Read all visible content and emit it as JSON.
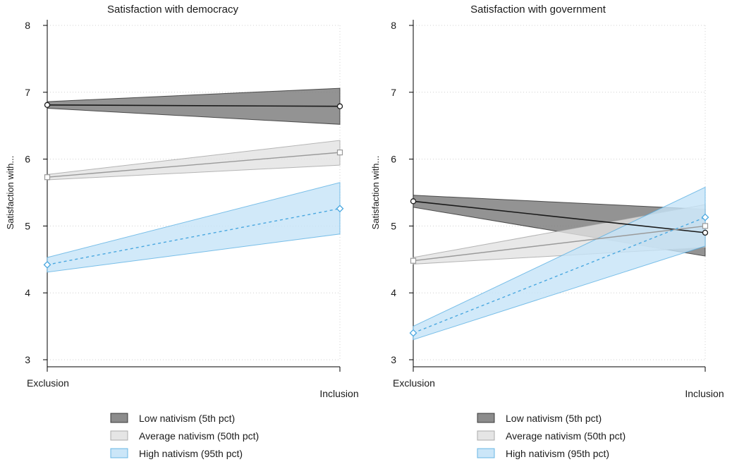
{
  "chart_data": [
    {
      "type": "line",
      "title": "Satisfaction with democracy",
      "ylabel": "Satisfaction with...",
      "xlabel": "",
      "categories": [
        "Exclusion",
        "Inclusion"
      ],
      "ylim": [
        3,
        8
      ],
      "yticks": [
        3,
        4,
        5,
        6,
        7,
        8
      ],
      "grid": true,
      "legend_position": "bottom",
      "series": [
        {
          "name": "Low nativism (5th pct)",
          "values": [
            6.81,
            6.79
          ],
          "ci_low": [
            6.76,
            6.52
          ],
          "ci_high": [
            6.86,
            7.06
          ],
          "color": "#1a1a1a",
          "fill": "#808080",
          "marker": "circle",
          "dash": "solid"
        },
        {
          "name": "Average nativism (50th pct)",
          "values": [
            5.73,
            6.1
          ],
          "ci_low": [
            5.69,
            5.91
          ],
          "ci_high": [
            5.77,
            6.28
          ],
          "color": "#9a9a9a",
          "fill": "#e2e2e2",
          "marker": "square",
          "dash": "solid"
        },
        {
          "name": "High nativism (95th pct)",
          "values": [
            4.42,
            5.26
          ],
          "ci_low": [
            4.31,
            4.88
          ],
          "ci_high": [
            4.53,
            5.65
          ],
          "color": "#4aa8e0",
          "fill": "#c5e3f7",
          "marker": "diamond",
          "dash": "dashed"
        }
      ]
    },
    {
      "type": "line",
      "title": "Satisfaction with government",
      "ylabel": "Satisfaction with...",
      "xlabel": "",
      "categories": [
        "Exclusion",
        "Inclusion"
      ],
      "ylim": [
        3,
        8
      ],
      "yticks": [
        3,
        4,
        5,
        6,
        7,
        8
      ],
      "grid": true,
      "legend_position": "bottom",
      "series": [
        {
          "name": "Low nativism (5th pct)",
          "values": [
            5.37,
            4.9
          ],
          "ci_low": [
            5.28,
            4.55
          ],
          "ci_high": [
            5.46,
            5.25
          ],
          "color": "#1a1a1a",
          "fill": "#808080",
          "marker": "circle",
          "dash": "solid"
        },
        {
          "name": "Average nativism (50th pct)",
          "values": [
            4.48,
            5.0
          ],
          "ci_low": [
            4.43,
            4.68
          ],
          "ci_high": [
            4.53,
            5.32
          ],
          "color": "#9a9a9a",
          "fill": "#e2e2e2",
          "marker": "square",
          "dash": "solid"
        },
        {
          "name": "High nativism (95th pct)",
          "values": [
            3.4,
            5.13
          ],
          "ci_low": [
            3.3,
            4.7
          ],
          "ci_high": [
            3.5,
            5.58
          ],
          "color": "#4aa8e0",
          "fill": "#c5e3f7",
          "marker": "diamond",
          "dash": "dashed"
        }
      ]
    }
  ]
}
